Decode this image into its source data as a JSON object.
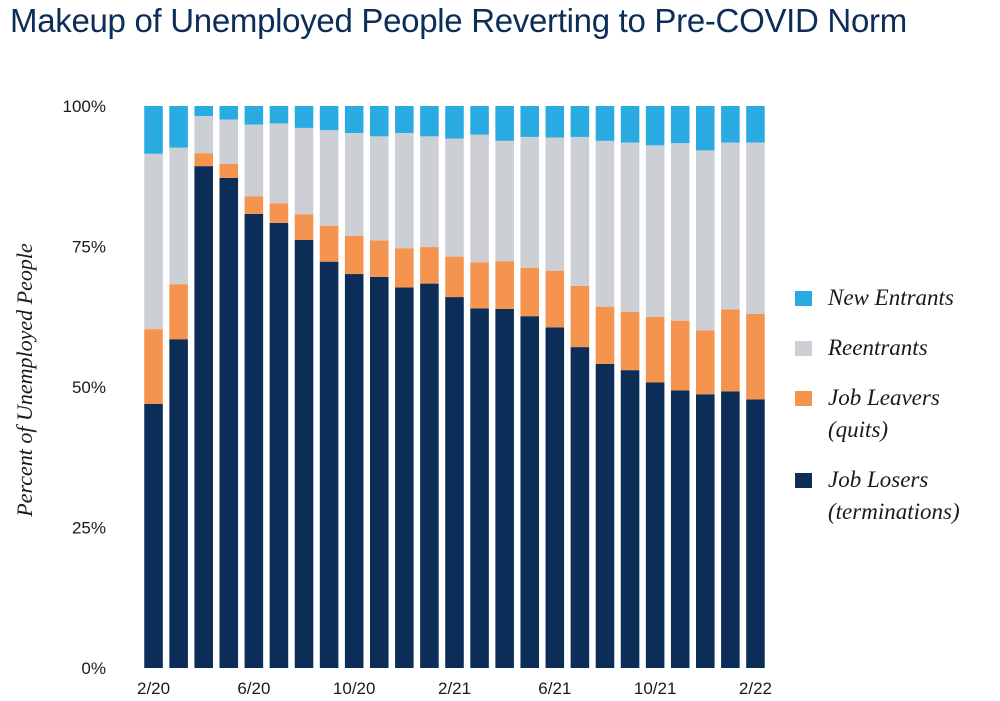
{
  "title": "Makeup of Unemployed People Reverting to Pre-COVID Norm",
  "chart_data": {
    "type": "bar",
    "stacked": true,
    "normalized": true,
    "title": "Makeup of Unemployed People Reverting to Pre-COVID Norm",
    "ylabel": "Percent of Unemployed People",
    "xlabel": "",
    "ylim": [
      0,
      100
    ],
    "y_ticks": [
      0,
      25,
      50,
      75,
      100
    ],
    "y_tick_labels": [
      "0%",
      "25%",
      "50%",
      "75%",
      "100%"
    ],
    "categories": [
      "2/20",
      "3/20",
      "4/20",
      "5/20",
      "6/20",
      "7/20",
      "8/20",
      "9/20",
      "10/20",
      "11/20",
      "12/20",
      "1/21",
      "2/21",
      "3/21",
      "4/21",
      "5/21",
      "6/21",
      "7/21",
      "8/21",
      "9/21",
      "10/21",
      "11/21",
      "12/21",
      "1/22",
      "2/22"
    ],
    "x_tick_labels": [
      "2/20",
      "6/20",
      "10/20",
      "2/21",
      "6/21",
      "10/21",
      "2/22"
    ],
    "series": [
      {
        "name": "Job Losers (terminations)",
        "color": "#0c2d57",
        "values": [
          47.0,
          58.5,
          89.3,
          87.2,
          80.8,
          79.2,
          76.2,
          72.3,
          70.1,
          69.6,
          67.7,
          68.4,
          66.0,
          64.0,
          63.9,
          62.6,
          60.6,
          57.1,
          54.1,
          53.0,
          50.8,
          49.4,
          48.7,
          49.2,
          47.8
        ]
      },
      {
        "name": "Job Leavers (quits)",
        "color": "#f4944f",
        "values": [
          13.3,
          9.8,
          2.3,
          2.5,
          3.1,
          3.5,
          4.5,
          6.4,
          6.8,
          6.5,
          7.0,
          6.5,
          7.2,
          8.2,
          8.5,
          8.6,
          10.1,
          10.9,
          10.2,
          10.4,
          11.7,
          12.4,
          11.4,
          14.6,
          15.2
        ]
      },
      {
        "name": "Reentrants",
        "color": "#cccfd3",
        "values": [
          31.2,
          24.3,
          6.6,
          7.9,
          12.8,
          14.2,
          15.4,
          17.0,
          18.3,
          18.5,
          20.5,
          19.7,
          21.0,
          22.7,
          21.4,
          23.3,
          23.7,
          26.5,
          29.5,
          30.1,
          30.5,
          31.6,
          32.0,
          29.7,
          30.5
        ]
      },
      {
        "name": "New Entrants",
        "color": "#29abe2",
        "values": [
          8.5,
          7.4,
          1.8,
          2.4,
          3.3,
          3.1,
          3.9,
          4.3,
          4.8,
          5.4,
          4.8,
          5.4,
          5.8,
          5.1,
          6.2,
          5.5,
          5.6,
          5.5,
          6.2,
          6.5,
          7.0,
          6.6,
          7.9,
          6.5,
          6.5
        ]
      }
    ]
  },
  "legend": {
    "new_entrants": "New Entrants",
    "reentrants": "Reentrants",
    "job_leavers_line1": "Job Leavers",
    "job_leavers_line2": "(quits)",
    "job_losers_line1": "Job Losers",
    "job_losers_line2": "(terminations)"
  },
  "colors": {
    "new_entrants": "#29abe2",
    "reentrants": "#cccfd3",
    "job_leavers": "#f4944f",
    "job_losers": "#0c2d57",
    "title": "#0c2d57"
  }
}
